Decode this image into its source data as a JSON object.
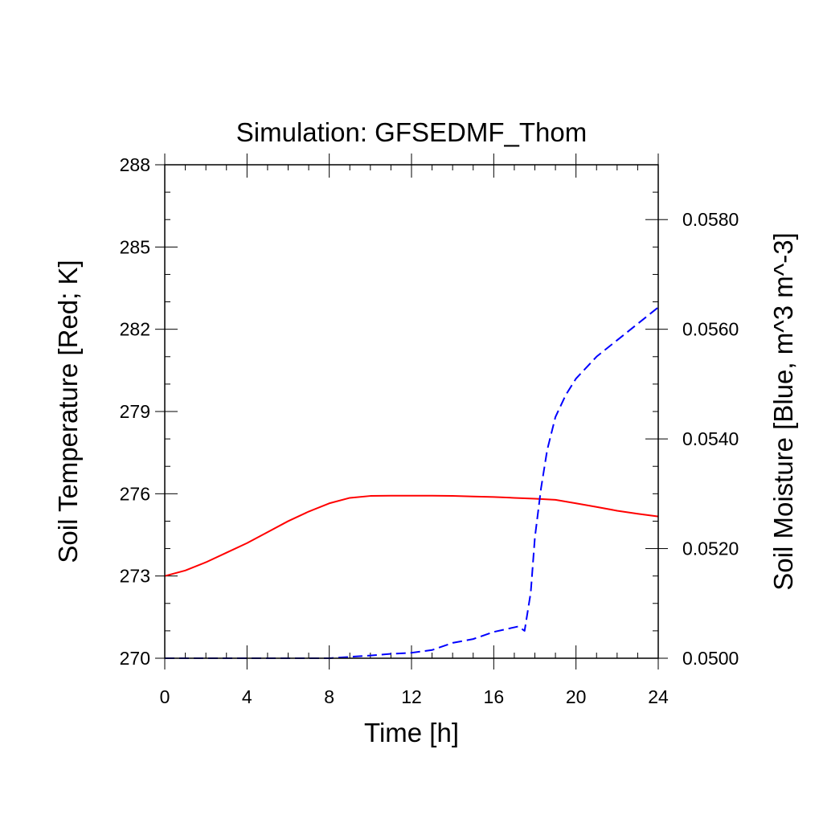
{
  "chart_data": {
    "type": "line",
    "title": "Simulation: GFSEDMF_Thom",
    "xlabel": "Time [h]",
    "ylabel_left": "Soil Temperature [Red; K]",
    "ylabel_right": "Soil Moisture [Blue, m^3 m^-3]",
    "xlim": [
      0,
      24
    ],
    "ylim_left": [
      270,
      288
    ],
    "ylim_right": [
      0.05,
      0.059
    ],
    "x_ticks": [
      "0",
      "4",
      "8",
      "12",
      "16",
      "20",
      "24"
    ],
    "y_left_ticks": [
      "270",
      "273",
      "276",
      "279",
      "282",
      "285",
      "288"
    ],
    "y_right_ticks": [
      "0.0500",
      "0.0520",
      "0.0540",
      "0.0560",
      "0.0580"
    ],
    "grid": false,
    "series": [
      {
        "axis": "left",
        "color": "#ff0000",
        "dash": "solid",
        "x": [
          0,
          1,
          2,
          3,
          4,
          5,
          6,
          7,
          8,
          9,
          10,
          11,
          12,
          13,
          14,
          15,
          16,
          17,
          18,
          19,
          20,
          21,
          22,
          23,
          24
        ],
        "y": [
          273.0,
          273.2,
          273.5,
          273.85,
          274.2,
          274.6,
          275.0,
          275.35,
          275.65,
          275.85,
          275.92,
          275.93,
          275.93,
          275.93,
          275.92,
          275.9,
          275.88,
          275.85,
          275.82,
          275.78,
          275.65,
          275.52,
          275.38,
          275.27,
          275.17
        ]
      },
      {
        "axis": "right",
        "color": "#0000ff",
        "dash": "dashed",
        "x": [
          0,
          2,
          4,
          6,
          8,
          10,
          11,
          12,
          13,
          14,
          15,
          16,
          17.2,
          17.5,
          17.8,
          18.0,
          18.3,
          18.6,
          19.0,
          19.5,
          20.0,
          21.0,
          22.0,
          23.0,
          24.0
        ],
        "y": [
          0.05,
          0.05,
          0.05,
          0.05,
          0.05,
          0.05005,
          0.05008,
          0.0501,
          0.05015,
          0.05028,
          0.05035,
          0.05048,
          0.05058,
          0.0505,
          0.0512,
          0.0522,
          0.0531,
          0.0538,
          0.0544,
          0.0548,
          0.0551,
          0.0555,
          0.0558,
          0.0561,
          0.0564
        ]
      }
    ]
  }
}
